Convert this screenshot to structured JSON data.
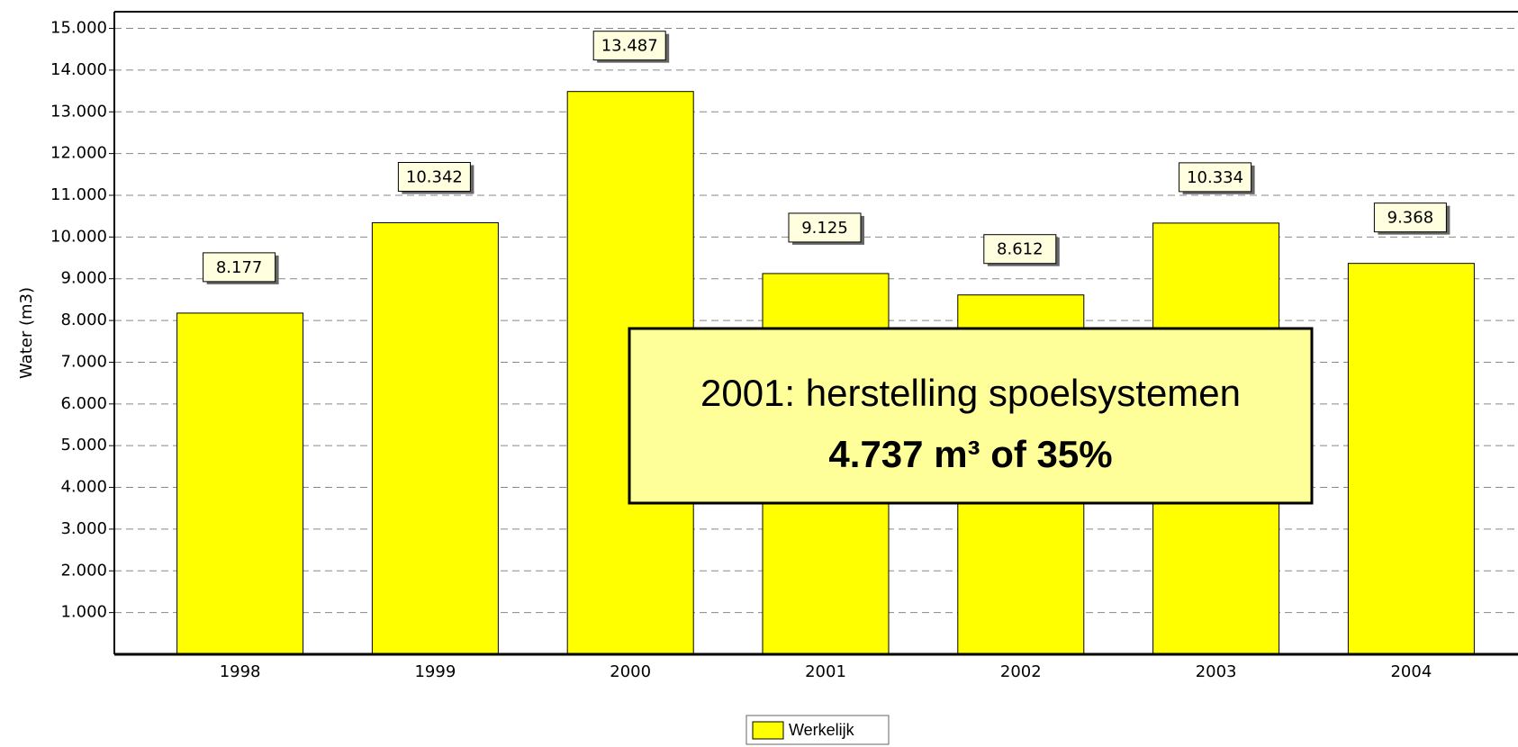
{
  "chart_data": {
    "type": "bar",
    "y_label": "Water (m3)",
    "categories": [
      "1998",
      "1999",
      "2000",
      "2001",
      "2002",
      "2003",
      "2004"
    ],
    "series": [
      {
        "name": "Werkelijk",
        "color": "#ffff00",
        "values": [
          8177,
          10342,
          13487,
          9125,
          8612,
          10334,
          9368
        ],
        "value_labels": [
          "8.177",
          "10.342",
          "13.487",
          "9.125",
          "8.612",
          "10.334",
          "9.368"
        ]
      }
    ],
    "ylim": [
      0,
      15400
    ],
    "yticks": [
      {
        "value": 1000,
        "label": "1.000"
      },
      {
        "value": 2000,
        "label": "2.000"
      },
      {
        "value": 3000,
        "label": "3.000"
      },
      {
        "value": 4000,
        "label": "4.000"
      },
      {
        "value": 5000,
        "label": "5.000"
      },
      {
        "value": 6000,
        "label": "6.000"
      },
      {
        "value": 7000,
        "label": "7.000"
      },
      {
        "value": 8000,
        "label": "8.000"
      },
      {
        "value": 9000,
        "label": "9.000"
      },
      {
        "value": 10000,
        "label": "10.000"
      },
      {
        "value": 11000,
        "label": "11.000"
      },
      {
        "value": 12000,
        "label": "12.000"
      },
      {
        "value": 13000,
        "label": "13.000"
      },
      {
        "value": 14000,
        "label": "14.000"
      },
      {
        "value": 15000,
        "label": "15.000"
      }
    ],
    "grid": true,
    "annotation": {
      "line1": "2001: herstelling spoelsystemen",
      "line2": "4.737 m³ of 35%"
    }
  }
}
